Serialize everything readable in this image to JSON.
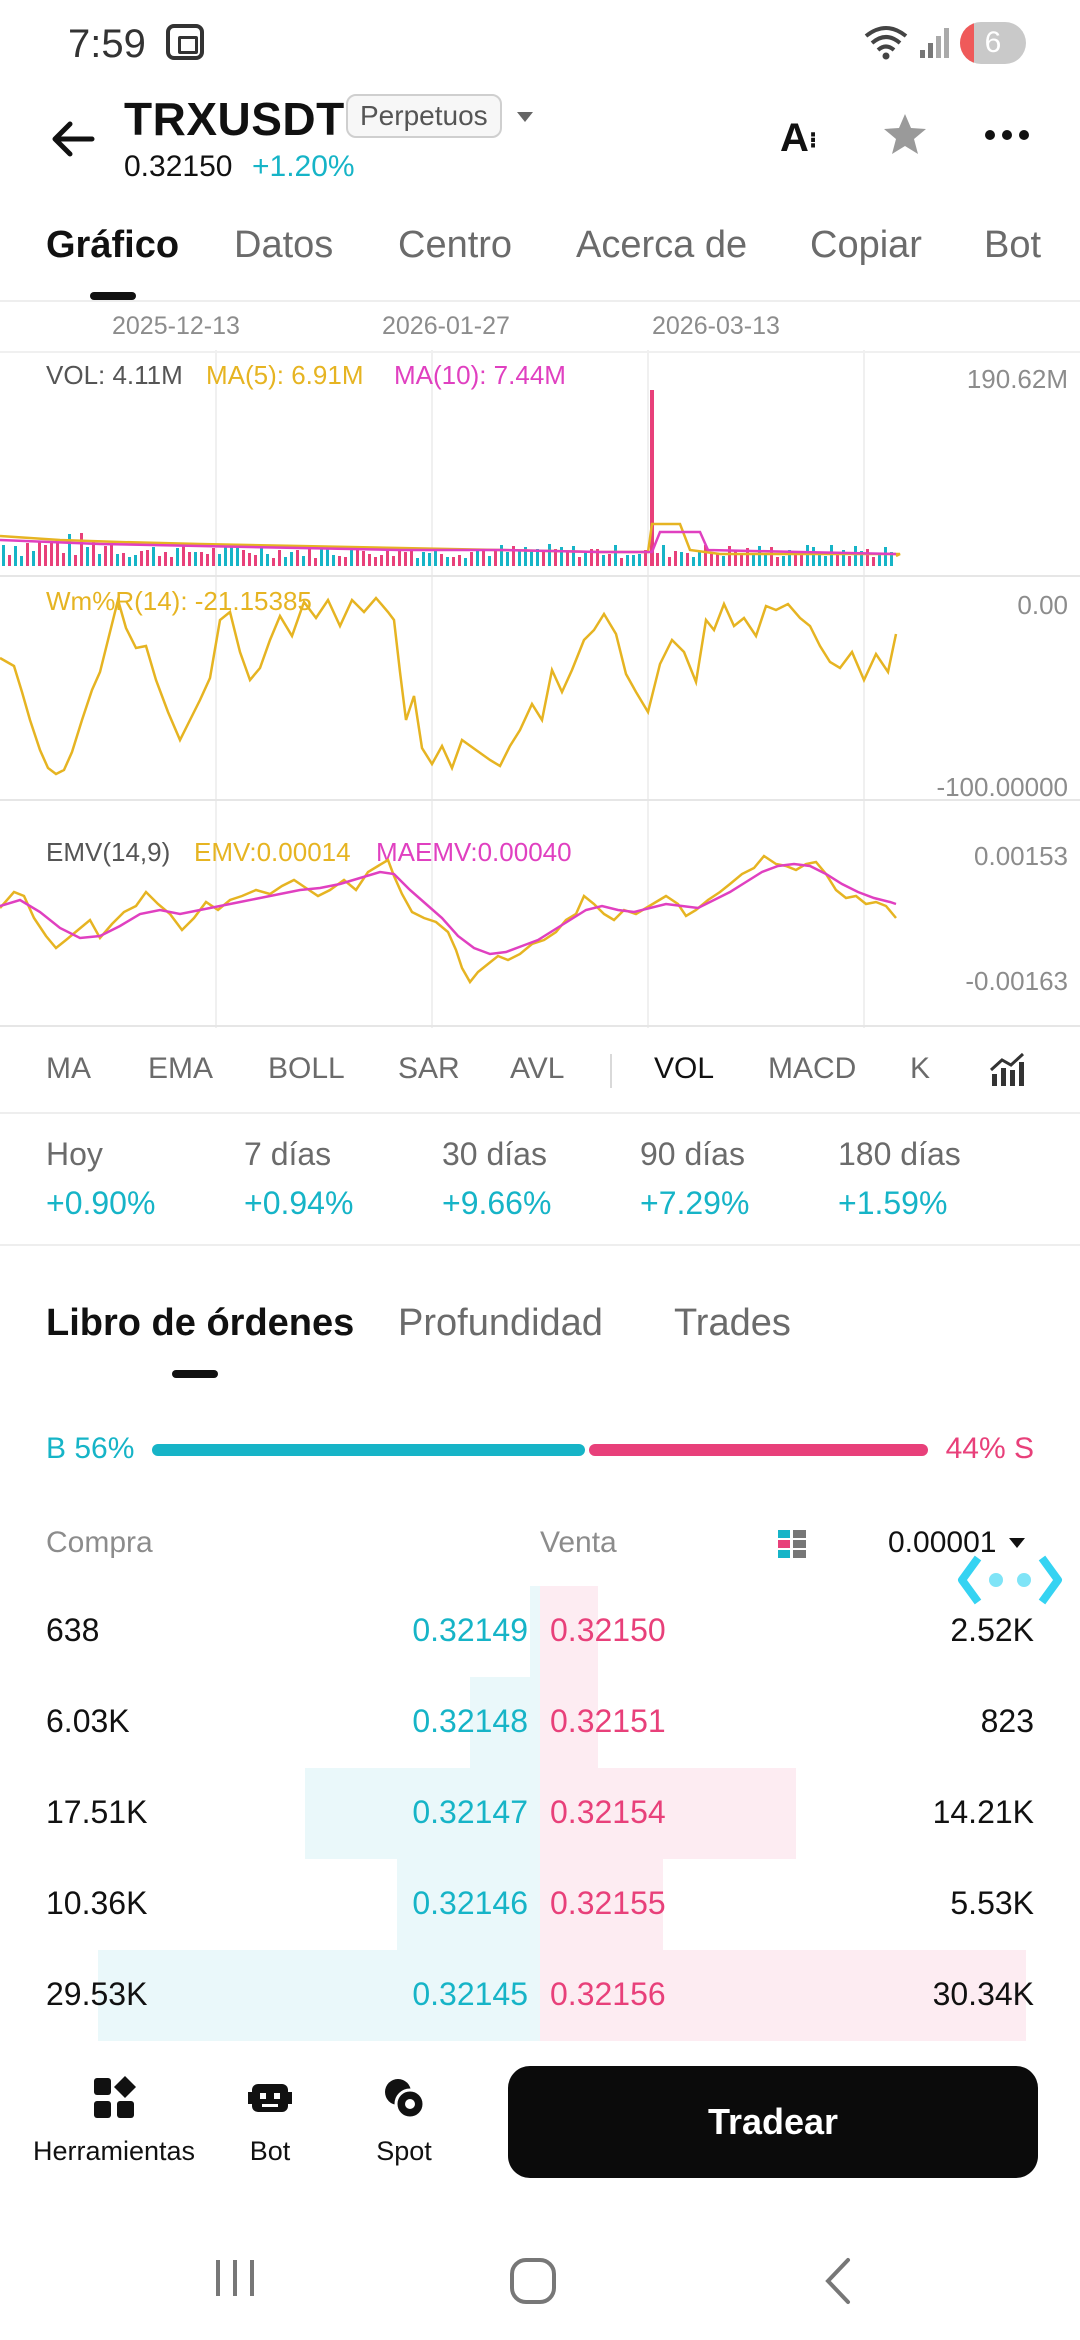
{
  "status_bar": {
    "time": "7:59",
    "battery_level": "6"
  },
  "header": {
    "symbol": "TRXUSDT",
    "badge": "Perpetuos",
    "price": "0.32150",
    "change": "+1.20%",
    "font_size_label": "A"
  },
  "tabs": [
    "Gráfico",
    "Datos",
    "Centro",
    "Acerca de",
    "Copiar",
    "Bot"
  ],
  "chart": {
    "dates": [
      "2025-12-13",
      "2026-01-27",
      "2026-03-13"
    ],
    "volume": {
      "label": "VOL: 4.11M",
      "ma5": "MA(5): 6.91M",
      "ma10": "MA(10): 7.44M",
      "max_label": "190.62M"
    },
    "wr": {
      "label": "Wm%R(14): -21.15385",
      "top_label": "0.00",
      "bottom_label": "-100.00000"
    },
    "emv": {
      "label": "EMV(14,9)",
      "emv": "EMV:0.00014",
      "maemv": "MAEMV:0.00040",
      "top_label": "0.00153",
      "bottom_label": "-0.00163"
    },
    "colors": {
      "ma5": "#e6b422",
      "ma10": "#e040c0",
      "up": "#16b4c7",
      "down": "#e8407a"
    }
  },
  "indicators": [
    "MA",
    "EMA",
    "BOLL",
    "SAR",
    "AVL",
    "VOL",
    "MACD",
    "K"
  ],
  "periods": [
    {
      "label": "Hoy",
      "value": "+0.90%"
    },
    {
      "label": "7 días",
      "value": "+0.94%"
    },
    {
      "label": "30 días",
      "value": "+9.66%"
    },
    {
      "label": "90 días",
      "value": "+7.29%"
    },
    {
      "label": "180 días",
      "value": "+1.59%"
    }
  ],
  "orderbook_tabs": [
    "Libro de órdenes",
    "Profundidad",
    "Trades"
  ],
  "ratio": {
    "buy_label": "B 56%",
    "sell_label": "44% S",
    "buy_fraction": 0.56
  },
  "book": {
    "buy_header": "Compra",
    "sell_header": "Venta",
    "precision": "0.00001",
    "rows": [
      {
        "buy_qty": "638",
        "buy_price": "0.32149",
        "sell_price": "0.32150",
        "sell_qty": "2.52K",
        "buy_depth": 0.0,
        "sell_depth": 0.04
      },
      {
        "buy_qty": "6.03K",
        "buy_price": "0.32148",
        "sell_price": "0.32151",
        "sell_qty": "823",
        "buy_depth": 0.13,
        "sell_depth": 0.04
      },
      {
        "buy_qty": "17.51K",
        "buy_price": "0.32147",
        "sell_price": "0.32154",
        "sell_qty": "14.21K",
        "buy_depth": 0.49,
        "sell_depth": 0.47
      },
      {
        "buy_qty": "10.36K",
        "buy_price": "0.32146",
        "sell_price": "0.32155",
        "sell_qty": "5.53K",
        "buy_depth": 0.29,
        "sell_depth": 0.18
      },
      {
        "buy_qty": "29.53K",
        "buy_price": "0.32145",
        "sell_price": "0.32156",
        "sell_qty": "30.34K",
        "buy_depth": 0.94,
        "sell_depth": 0.97
      }
    ]
  },
  "bottom_bar": {
    "tools": "Herramientas",
    "bot": "Bot",
    "spot": "Spot",
    "trade": "Tradear"
  }
}
